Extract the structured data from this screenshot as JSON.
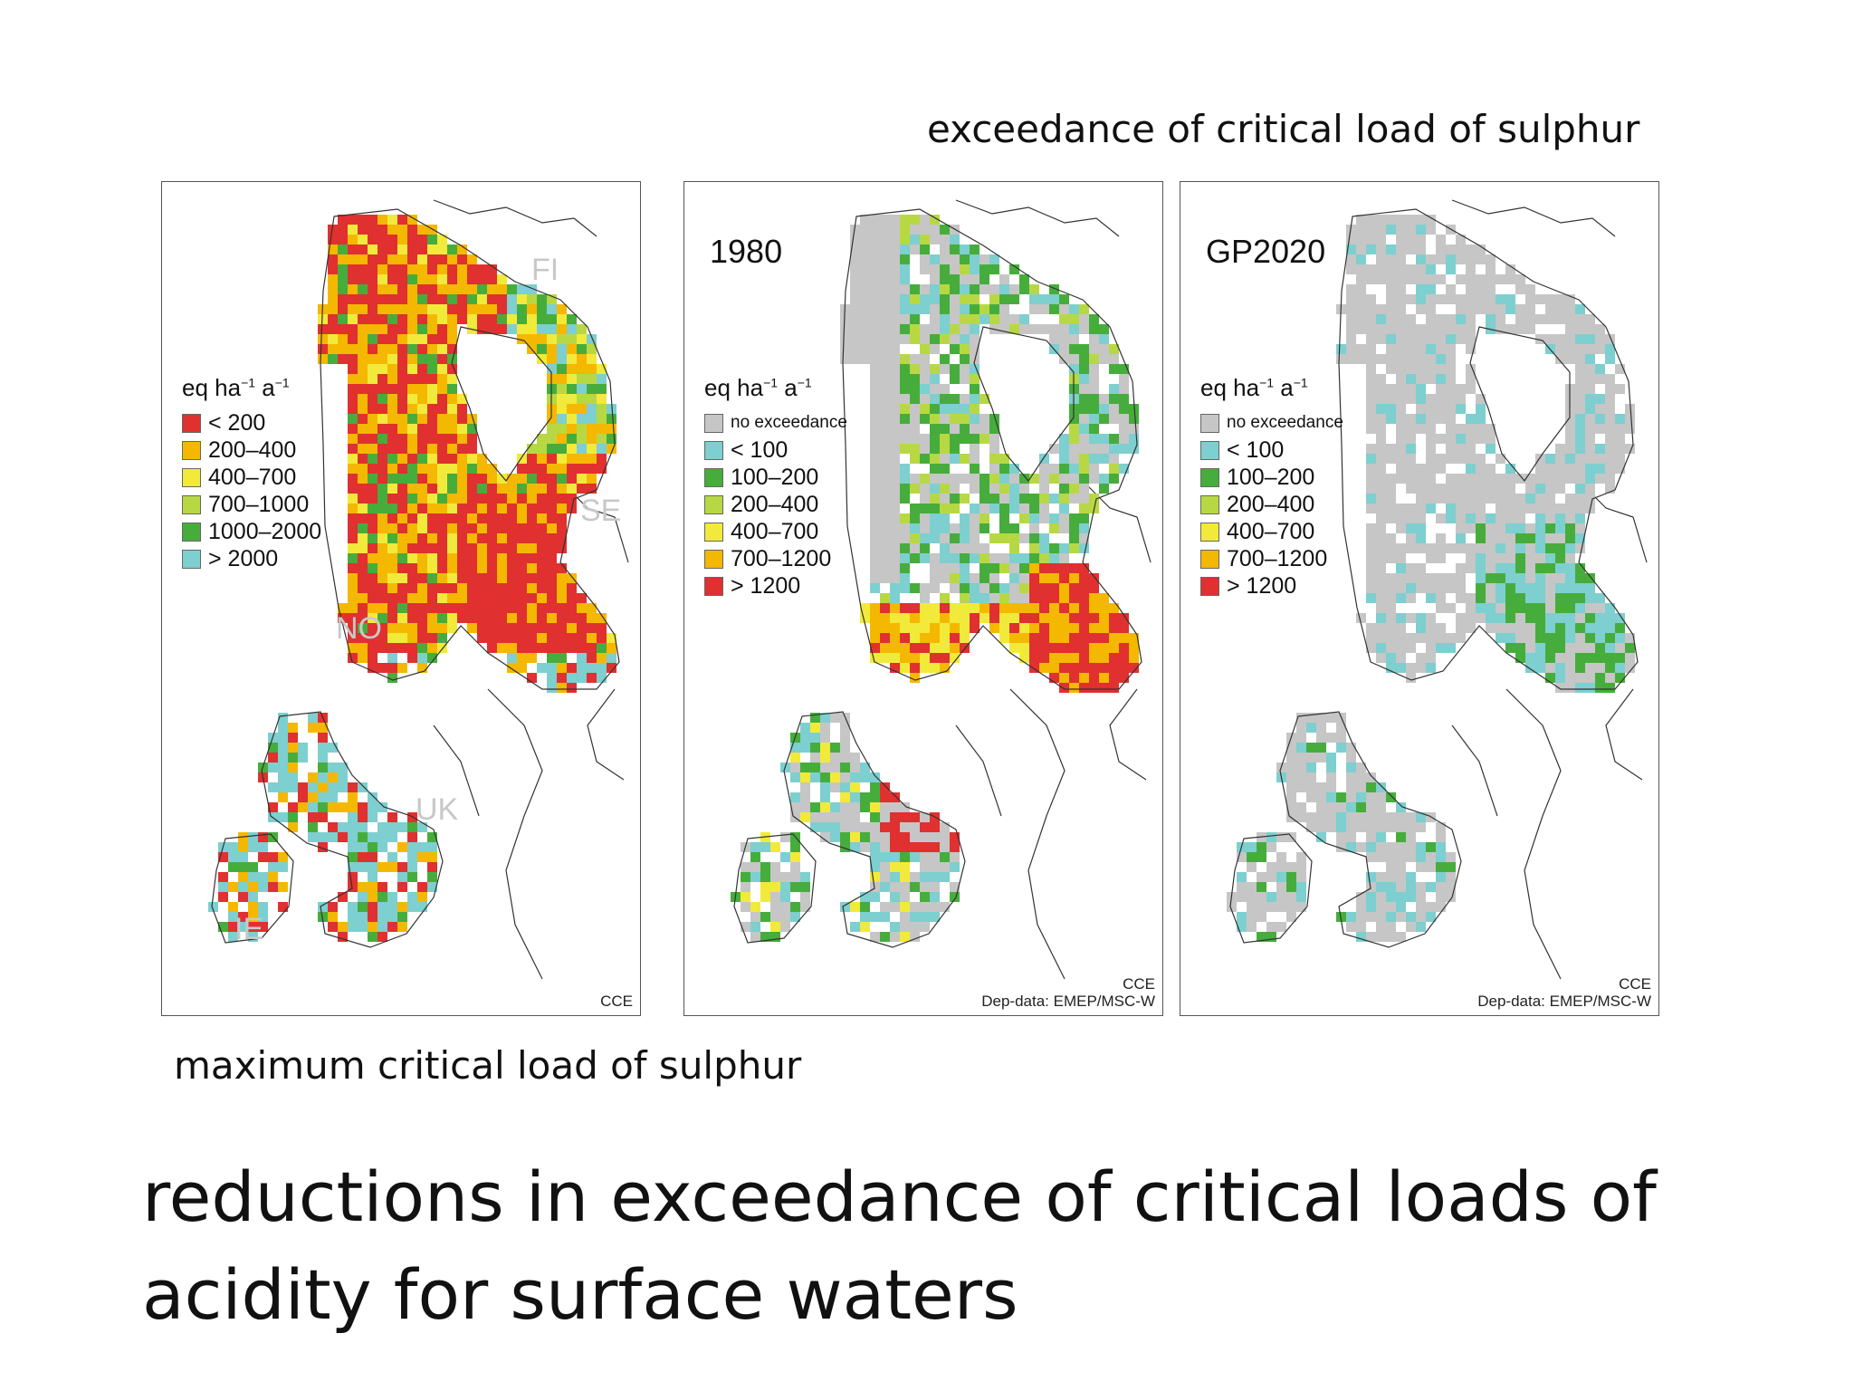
{
  "captions": {
    "top": "exceedance of critical load of sulphur",
    "bottom": "maximum critical load of sulphur",
    "title": "reductions in exceedance of critical loads of acidity for surface waters"
  },
  "panels": [
    {
      "id": "cl",
      "year": "",
      "legend_title": "eq ha",
      "legend": [
        {
          "label": "< 200",
          "color": "#e03030"
        },
        {
          "label": "200–400",
          "color": "#f5b800"
        },
        {
          "label": "400–700",
          "color": "#f2ea3a"
        },
        {
          "label": "700–1000",
          "color": "#b8d843"
        },
        {
          "label": "1000–2000",
          "color": "#46ad3c"
        },
        {
          "label": "> 2000",
          "color": "#7ecfcf"
        }
      ],
      "country_labels": [
        {
          "text": "FI"
        },
        {
          "text": "SE"
        },
        {
          "text": "NO"
        },
        {
          "text": "UK"
        },
        {
          "text": "IE"
        }
      ],
      "credit_lines": [
        "CCE"
      ]
    },
    {
      "id": "1980",
      "year": "1980",
      "legend_title": "eq ha",
      "legend": [
        {
          "label": "no exceedance",
          "color": "#c6c6c6"
        },
        {
          "label": "< 100",
          "color": "#7ecfcf"
        },
        {
          "label": "100–200",
          "color": "#46ad3c"
        },
        {
          "label": "200–400",
          "color": "#b8d843"
        },
        {
          "label": "400–700",
          "color": "#f2ea3a"
        },
        {
          "label": "700–1200",
          "color": "#f5b800"
        },
        {
          "label": "> 1200",
          "color": "#e03030"
        }
      ],
      "credit_lines": [
        "CCE",
        "Dep-data: EMEP/MSC-W"
      ]
    },
    {
      "id": "gp2020",
      "year": "GP2020",
      "legend_title": "eq ha",
      "legend": [
        {
          "label": "no exceedance",
          "color": "#c6c6c6"
        },
        {
          "label": "< 100",
          "color": "#7ecfcf"
        },
        {
          "label": "100–200",
          "color": "#46ad3c"
        },
        {
          "label": "200–400",
          "color": "#b8d843"
        },
        {
          "label": "400–700",
          "color": "#f2ea3a"
        },
        {
          "label": "700–1200",
          "color": "#f5b800"
        },
        {
          "label": "> 1200",
          "color": "#e03030"
        }
      ],
      "credit_lines": [
        "CCE",
        "Dep-data: EMEP/MSC-W"
      ]
    }
  ],
  "units": {
    "sup1": "−1",
    "mid": " a",
    "sup2": "−1"
  }
}
